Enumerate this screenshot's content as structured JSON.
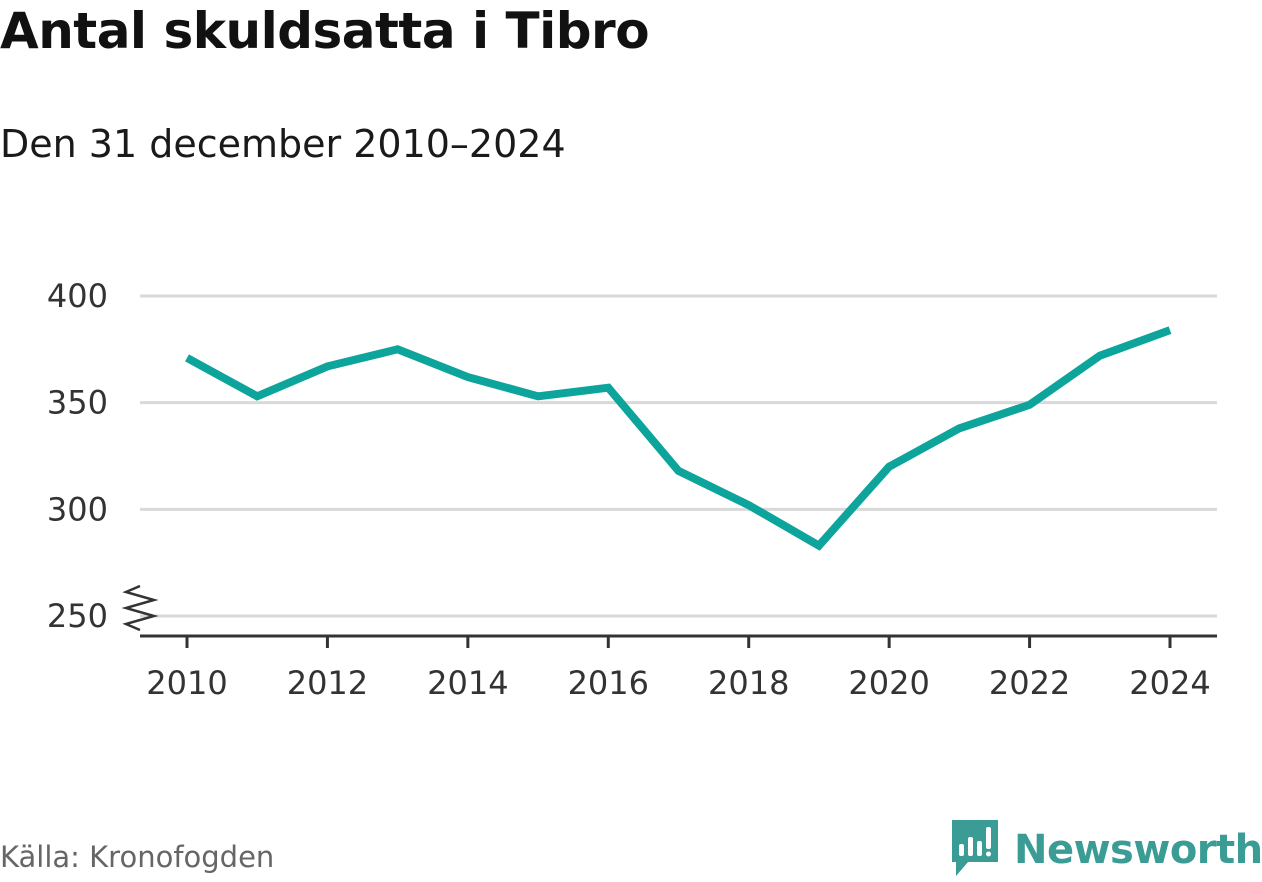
{
  "title": "Antal skuldsatta i Tibro",
  "subtitle": "Den 31 december 2010–2024",
  "source": "Källa: Kronofogden",
  "brand": {
    "name": "Newsworthy",
    "icon": "newsworthy-logo-icon",
    "color": "#3a9c95"
  },
  "colors": {
    "line": "#0ca49b",
    "grid": "#d9d9d9",
    "axis": "#333333"
  },
  "chart_data": {
    "type": "line",
    "title": "Antal skuldsatta i Tibro",
    "subtitle": "Den 31 december 2010–2024",
    "xlabel": "",
    "ylabel": "",
    "x": [
      2010,
      2011,
      2012,
      2013,
      2014,
      2015,
      2016,
      2017,
      2018,
      2019,
      2020,
      2021,
      2022,
      2023,
      2024
    ],
    "series": [
      {
        "values": [
          371,
          353,
          367,
          375,
          362,
          353,
          357,
          318,
          302,
          283,
          320,
          338,
          349,
          372,
          384
        ]
      }
    ],
    "x_ticks": [
      "2010",
      "2012",
      "2014",
      "2016",
      "2018",
      "2020",
      "2022",
      "2024"
    ],
    "y_ticks": [
      "250",
      "300",
      "350",
      "400"
    ],
    "ylim": [
      250,
      400
    ],
    "y_axis_break": true,
    "grid": true
  }
}
